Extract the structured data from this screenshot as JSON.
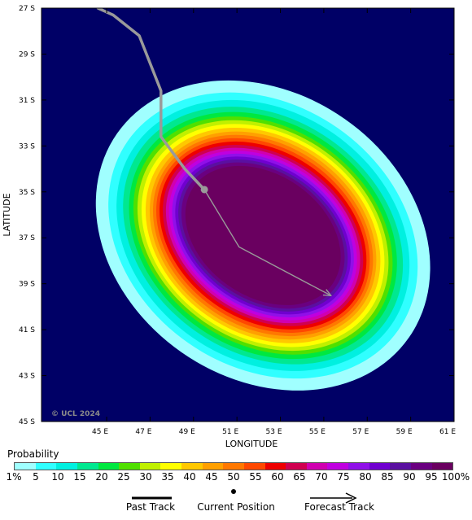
{
  "map": {
    "background_color": "#000066",
    "x_axis_title": "LONGITUDE",
    "y_axis_title": "LATITUDE",
    "copyright": "© UCL 2024",
    "lon_range": [
      42.0,
      61.0
    ],
    "lat_range": [
      -45.0,
      -27.0
    ],
    "lon_ticks": [
      {
        "value": 45,
        "label": "45 E"
      },
      {
        "value": 47,
        "label": "47 E"
      },
      {
        "value": 49,
        "label": "49 E"
      },
      {
        "value": 51,
        "label": "51 E"
      },
      {
        "value": 53,
        "label": "53 E"
      },
      {
        "value": 55,
        "label": "55 E"
      },
      {
        "value": 57,
        "label": "57 E"
      },
      {
        "value": 59,
        "label": "59 E"
      },
      {
        "value": 61,
        "label": "61 E"
      }
    ],
    "lat_ticks": [
      {
        "value": -27,
        "label": "27 S"
      },
      {
        "value": -29,
        "label": "29 S"
      },
      {
        "value": -31,
        "label": "31 S"
      },
      {
        "value": -33,
        "label": "33 S"
      },
      {
        "value": -35,
        "label": "35 S"
      },
      {
        "value": -37,
        "label": "37 S"
      },
      {
        "value": -39,
        "label": "39 S"
      },
      {
        "value": -41,
        "label": "41 S"
      },
      {
        "value": -43,
        "label": "43 S"
      },
      {
        "value": -45,
        "label": "45 S"
      }
    ],
    "past_track": [
      [
        44.6,
        -27.0
      ],
      [
        45.3,
        -27.3
      ],
      [
        46.5,
        -28.2
      ],
      [
        47.5,
        -30.6
      ],
      [
        47.5,
        -32.6
      ],
      [
        48.6,
        -34.0
      ],
      [
        49.5,
        -34.9
      ]
    ],
    "current_position": [
      49.5,
      -34.9
    ],
    "forecast_track": [
      [
        49.5,
        -34.9
      ],
      [
        51.1,
        -37.4
      ],
      [
        55.3,
        -39.5
      ]
    ],
    "track_color": "#9a9a9a",
    "probability_field": {
      "center": [
        52.2,
        -36.9
      ],
      "rings": [
        {
          "prob": 1,
          "color": "#a0ffff",
          "lon_r": 8.2,
          "lat_r": 6.2
        },
        {
          "prob": 5,
          "color": "#30ffff",
          "lon_r": 7.6,
          "lat_r": 5.7
        },
        {
          "prob": 10,
          "color": "#00f0e0",
          "lon_r": 7.2,
          "lat_r": 5.4
        },
        {
          "prob": 15,
          "color": "#00e890",
          "lon_r": 6.9,
          "lat_r": 5.1
        },
        {
          "prob": 20,
          "color": "#00e840",
          "lon_r": 6.6,
          "lat_r": 4.9
        },
        {
          "prob": 25,
          "color": "#50e000",
          "lon_r": 6.4,
          "lat_r": 4.7
        },
        {
          "prob": 30,
          "color": "#c0f000",
          "lon_r": 6.2,
          "lat_r": 4.55
        },
        {
          "prob": 35,
          "color": "#ffff00",
          "lon_r": 6.0,
          "lat_r": 4.4
        },
        {
          "prob": 40,
          "color": "#ffc800",
          "lon_r": 5.8,
          "lat_r": 4.25
        },
        {
          "prob": 45,
          "color": "#ffa000",
          "lon_r": 5.6,
          "lat_r": 4.1
        },
        {
          "prob": 50,
          "color": "#ff7800",
          "lon_r": 5.45,
          "lat_r": 3.95
        },
        {
          "prob": 55,
          "color": "#ff4800",
          "lon_r": 5.3,
          "lat_r": 3.8
        },
        {
          "prob": 60,
          "color": "#ee0000",
          "lon_r": 5.15,
          "lat_r": 3.65
        },
        {
          "prob": 65,
          "color": "#d00050",
          "lon_r": 5.0,
          "lat_r": 3.5
        },
        {
          "prob": 70,
          "color": "#d000b0",
          "lon_r": 4.85,
          "lat_r": 3.38
        },
        {
          "prob": 75,
          "color": "#c000e0",
          "lon_r": 4.7,
          "lat_r": 3.26
        },
        {
          "prob": 80,
          "color": "#9010e8",
          "lon_r": 4.55,
          "lat_r": 3.14
        },
        {
          "prob": 85,
          "color": "#7000d0",
          "lon_r": 4.4,
          "lat_r": 3.02
        },
        {
          "prob": 90,
          "color": "#5a10a0",
          "lon_r": 4.25,
          "lat_r": 2.9
        },
        {
          "prob": 95,
          "color": "#6a0080",
          "lon_r": 4.1,
          "lat_r": 2.78
        },
        {
          "prob": 100,
          "color": "#6a0060",
          "lon_r": 3.9,
          "lat_r": 2.65
        }
      ]
    }
  },
  "legend": {
    "title": "Probability",
    "colors": [
      "#a0ffff",
      "#30ffff",
      "#00f0e0",
      "#00e890",
      "#00e840",
      "#50e000",
      "#c0f000",
      "#ffff00",
      "#ffc800",
      "#ffa000",
      "#ff7800",
      "#ff4800",
      "#ee0000",
      "#d00050",
      "#d000b0",
      "#c000e0",
      "#9010e8",
      "#7000d0",
      "#5a10a0",
      "#6a0080",
      "#6a0060"
    ],
    "labels": [
      "1%",
      "5",
      "10",
      "15",
      "20",
      "25",
      "30",
      "35",
      "40",
      "45",
      "50",
      "55",
      "60",
      "65",
      "70",
      "75",
      "80",
      "85",
      "90",
      "95",
      "100%"
    ]
  },
  "key": {
    "past_track": "Past Track",
    "current_position": "Current Position",
    "forecast_track": "Forecast Track"
  }
}
